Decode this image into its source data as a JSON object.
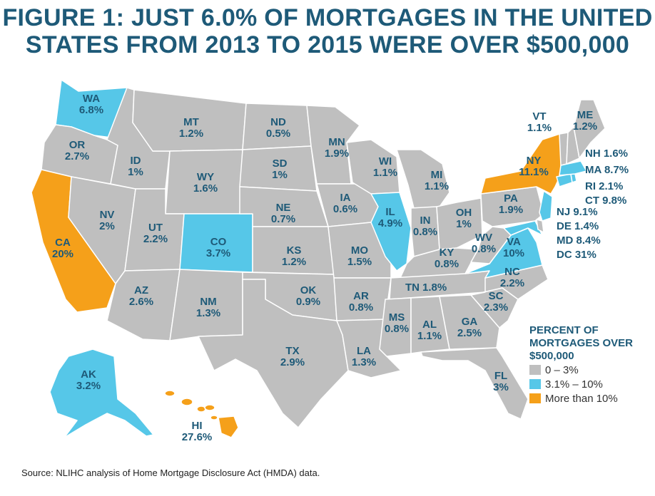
{
  "title_line1": "FIGURE 1: JUST 6.0% OF MORTGAGES IN THE UNITED",
  "title_line2": "STATES FROM 2013 TO 2015 WERE OVER $500,000",
  "colors": {
    "low": "#bfbfbf",
    "mid": "#56c7e8",
    "high": "#f5a01a",
    "text": "#1e5a78",
    "border": "#ffffff"
  },
  "states": {
    "WA": {
      "label": "WA",
      "value": "6.8%"
    },
    "OR": {
      "label": "OR",
      "value": "2.7%"
    },
    "CA": {
      "label": "CA",
      "value": "20%"
    },
    "NV": {
      "label": "NV",
      "value": "2%"
    },
    "ID": {
      "label": "ID",
      "value": "1%"
    },
    "MT": {
      "label": "MT",
      "value": "1.2%"
    },
    "WY": {
      "label": "WY",
      "value": "1.6%"
    },
    "UT": {
      "label": "UT",
      "value": "2.2%"
    },
    "AZ": {
      "label": "AZ",
      "value": "2.6%"
    },
    "CO": {
      "label": "CO",
      "value": "3.7%"
    },
    "NM": {
      "label": "NM",
      "value": "1.3%"
    },
    "ND": {
      "label": "ND",
      "value": "0.5%"
    },
    "SD": {
      "label": "SD",
      "value": "1%"
    },
    "NE": {
      "label": "NE",
      "value": "0.7%"
    },
    "KS": {
      "label": "KS",
      "value": "1.2%"
    },
    "OK": {
      "label": "OK",
      "value": "0.9%"
    },
    "TX": {
      "label": "TX",
      "value": "2.9%"
    },
    "MN": {
      "label": "MN",
      "value": "1.9%"
    },
    "IA": {
      "label": "IA",
      "value": "0.6%"
    },
    "MO": {
      "label": "MO",
      "value": "1.5%"
    },
    "AR": {
      "label": "AR",
      "value": "0.8%"
    },
    "LA": {
      "label": "LA",
      "value": "1.3%"
    },
    "WI": {
      "label": "WI",
      "value": "1.1%"
    },
    "IL": {
      "label": "IL",
      "value": "4.9%"
    },
    "MI": {
      "label": "MI",
      "value": "1.1%"
    },
    "IN": {
      "label": "IN",
      "value": "0.8%"
    },
    "OH": {
      "label": "OH",
      "value": "1%"
    },
    "KY": {
      "label": "KY",
      "value": "0.8%"
    },
    "TN": {
      "label": "TN",
      "value": "1.8%"
    },
    "MS": {
      "label": "MS",
      "value": "0.8%"
    },
    "AL": {
      "label": "AL",
      "value": "1.1%"
    },
    "GA": {
      "label": "GA",
      "value": "2.5%"
    },
    "FL": {
      "label": "FL",
      "value": "3%"
    },
    "SC": {
      "label": "SC",
      "value": "2.3%"
    },
    "NC": {
      "label": "NC",
      "value": "2.2%"
    },
    "VA": {
      "label": "VA",
      "value": "10%"
    },
    "WV": {
      "label": "WV",
      "value": "0.8%"
    },
    "PA": {
      "label": "PA",
      "value": "1.9%"
    },
    "NY": {
      "label": "NY",
      "value": "11.1%"
    },
    "VT": {
      "label": "VT",
      "value": "1.1%"
    },
    "ME": {
      "label": "ME",
      "value": "1.2%"
    },
    "AK": {
      "label": "AK",
      "value": "3.2%"
    },
    "HI": {
      "label": "HI",
      "value": "27.6%"
    }
  },
  "small_states": {
    "NH": "NH 1.6%",
    "MA": "MA 8.7%",
    "RI": "RI 2.1%",
    "CT": "CT 9.8%",
    "NJ": "NJ 9.1%",
    "DE": "DE 1.4%",
    "MD": "MD 8.4%",
    "DC": "DC 31%"
  },
  "legend": {
    "title_line1": "PERCENT OF",
    "title_line2": "MORTGAGES OVER",
    "title_line3": "$500,000",
    "items": [
      "0 – 3%",
      "3.1% – 10%",
      "More than 10%"
    ]
  },
  "source": "Source: NLIHC analysis of Home Mortgage Disclosure Act (HMDA) data."
}
